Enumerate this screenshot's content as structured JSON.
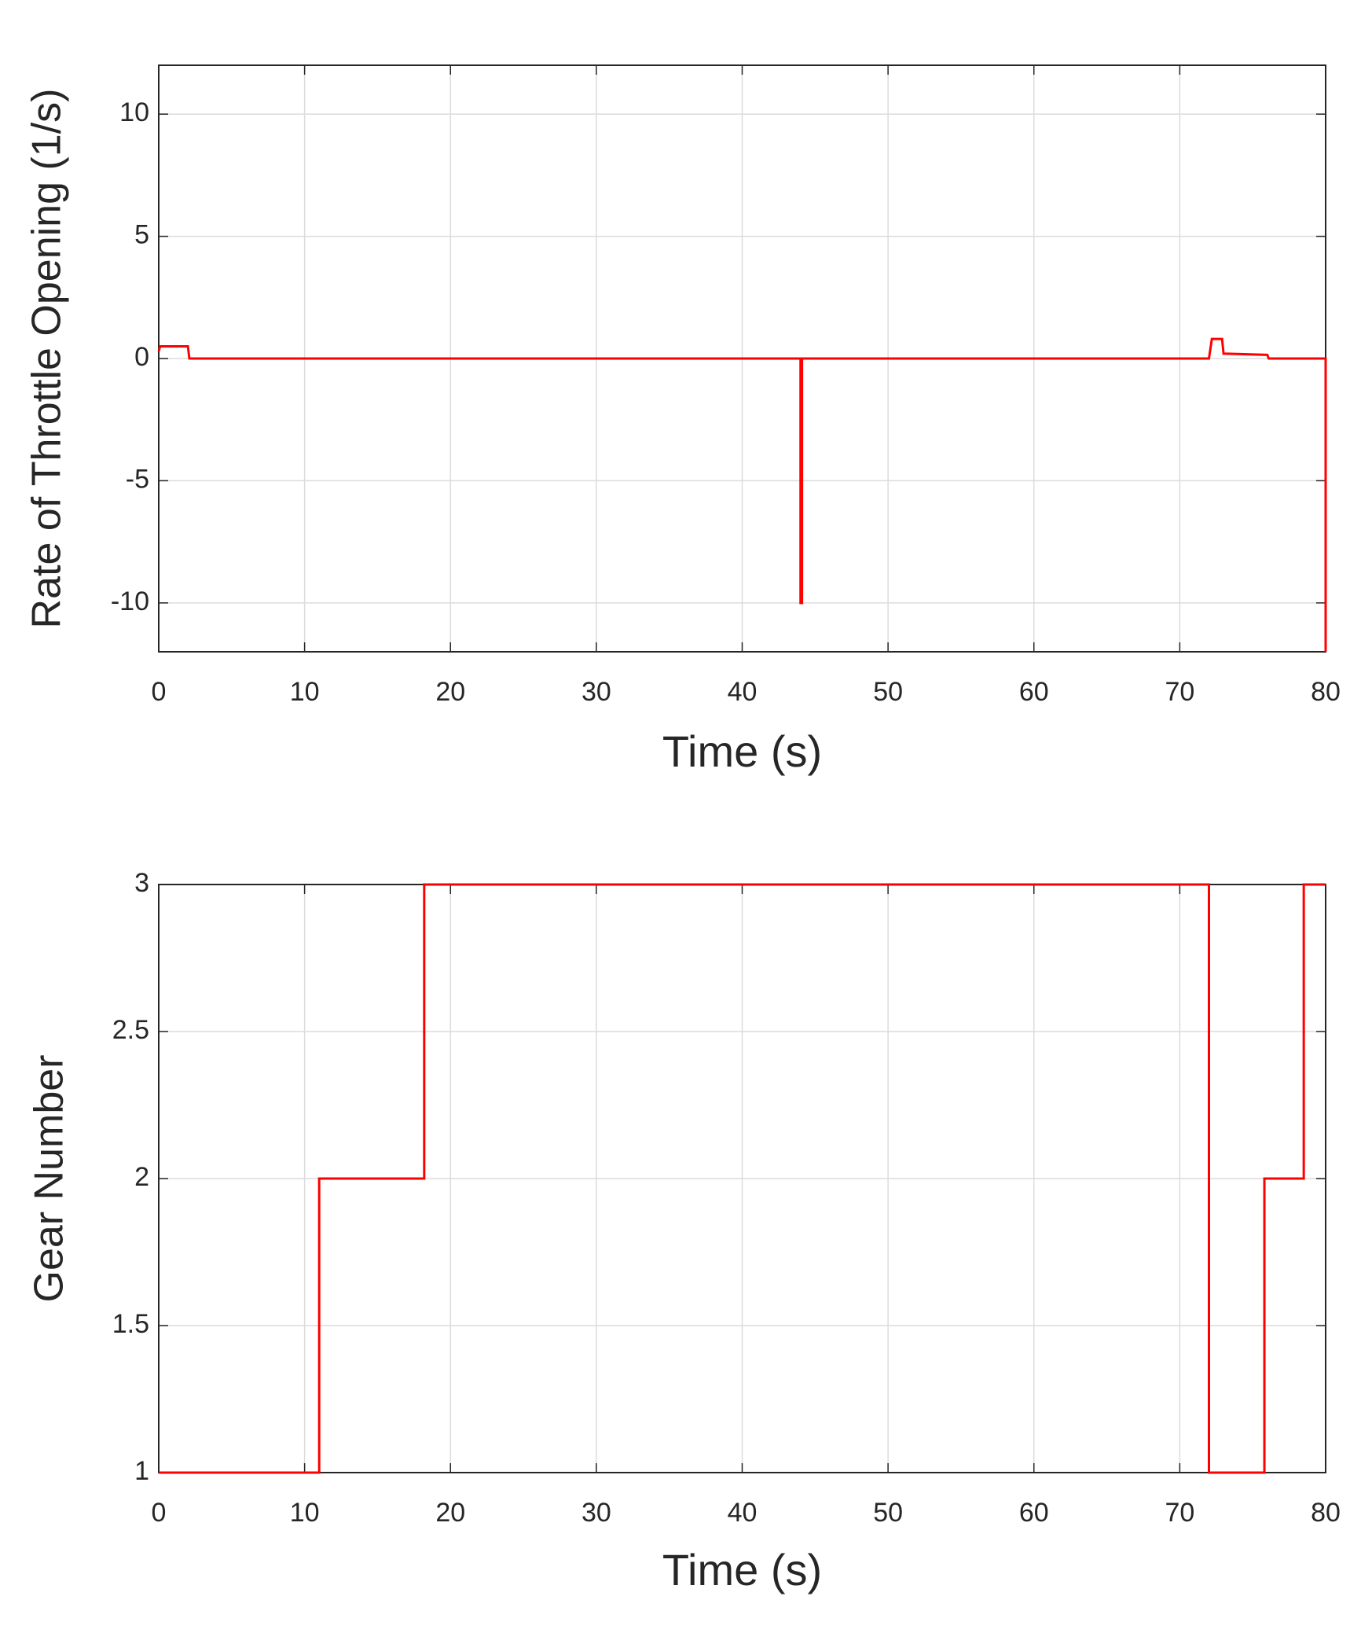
{
  "chart_data": [
    {
      "type": "line",
      "xlabel": "Time (s)",
      "ylabel": "Rate of Throttle Opening (1/s)",
      "x": [
        0,
        0.1,
        2,
        2.1,
        44,
        44,
        44.1,
        44.1,
        72,
        72.2,
        72.9,
        73,
        76,
        76.1,
        80,
        80
      ],
      "values": [
        0.3,
        0.5,
        0.5,
        0,
        0,
        -10,
        -10,
        0,
        0,
        0.8,
        0.8,
        0.2,
        0.15,
        0,
        0,
        -12
      ],
      "color": "#ff0000",
      "xlim": [
        0,
        80
      ],
      "xticks": [
        0,
        10,
        20,
        30,
        40,
        50,
        60,
        70,
        80
      ],
      "ylim": [
        -12,
        12
      ],
      "yticks": [
        -10,
        -5,
        0,
        5,
        10
      ],
      "grid": true
    },
    {
      "type": "line",
      "xlabel": "Time (s)",
      "ylabel": "Gear Number",
      "x": [
        0,
        11,
        11,
        18.2,
        18.2,
        72,
        72,
        75.8,
        75.8,
        78.5,
        78.5,
        80
      ],
      "values": [
        1,
        1,
        2,
        2,
        3,
        3,
        1,
        1,
        2,
        2,
        3,
        3
      ],
      "color": "#ff0000",
      "xlim": [
        0,
        80
      ],
      "xticks": [
        0,
        10,
        20,
        30,
        40,
        50,
        60,
        70,
        80
      ],
      "ylim": [
        1,
        3
      ],
      "yticks": [
        1,
        1.5,
        2,
        2.5,
        3
      ],
      "grid": true
    }
  ]
}
